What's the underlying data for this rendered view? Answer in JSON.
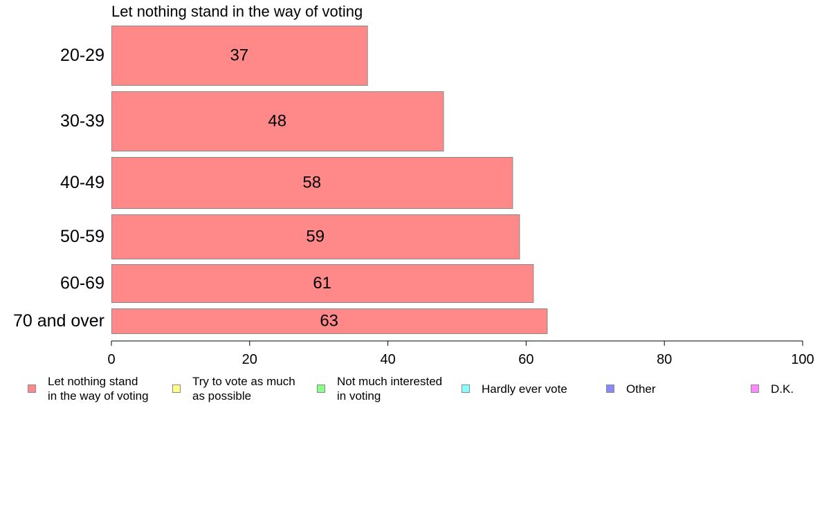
{
  "chart_data": {
    "type": "bar",
    "orientation": "horizontal",
    "title": "Let nothing stand in the way of voting",
    "categories": [
      "20-29",
      "30-39",
      "40-49",
      "50-59",
      "60-69",
      "70 and over"
    ],
    "values": [
      37,
      48,
      58,
      59,
      61,
      63
    ],
    "value_labels": [
      "37",
      "48",
      "58",
      "59",
      "61",
      "63"
    ],
    "xlim": [
      0,
      100
    ],
    "xticks": [
      0,
      20,
      40,
      60,
      80,
      100
    ],
    "grid": false,
    "bar_color": "#ff8888",
    "bar_border_color": "#888888",
    "legend_placement": "bottom",
    "legend": [
      {
        "label": "Let nothing stand\nin the way of voting",
        "color": "#ff8888"
      },
      {
        "label": "Try to vote as much\nas possible",
        "color": "#ffff88"
      },
      {
        "label": "Not much interested\nin voting",
        "color": "#88ff88"
      },
      {
        "label": "Hardly ever vote",
        "color": "#88ffff"
      },
      {
        "label": "Other",
        "color": "#8888ff"
      },
      {
        "label": "D.K.",
        "color": "#ff88ff"
      }
    ]
  }
}
